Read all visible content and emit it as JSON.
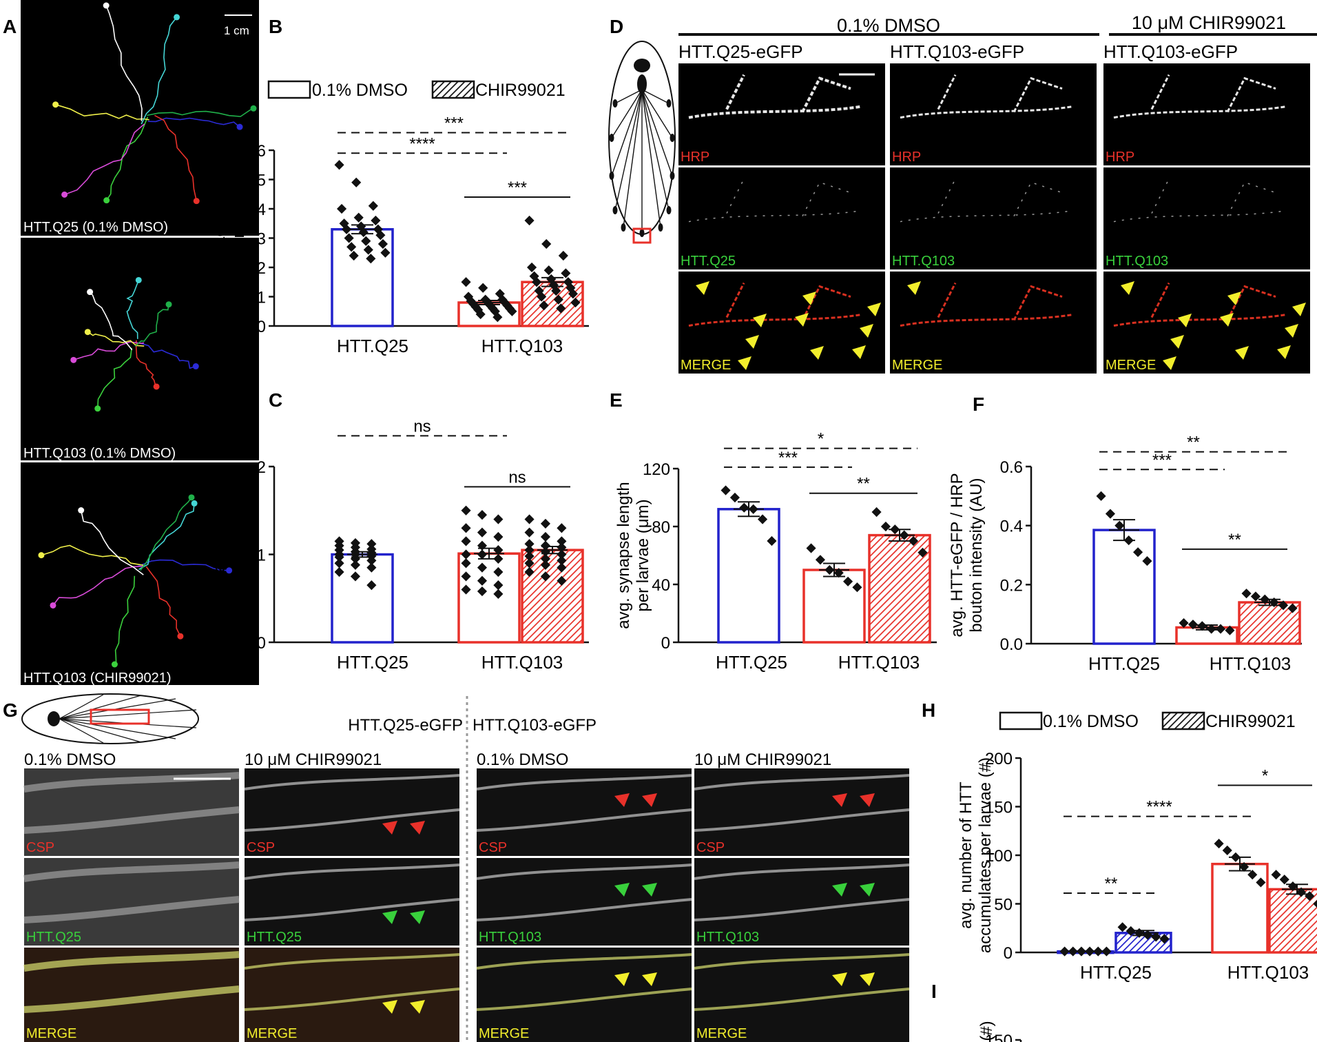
{
  "colors": {
    "blue": "#2222cc",
    "red": "#e8312a",
    "green": "#39d03c",
    "yellow": "#f2ee2c",
    "track_palette": [
      "#2b2bd6",
      "#e8312a",
      "#3bd13d",
      "#d84bd8",
      "#f0f04a",
      "#ffffff",
      "#45d6d6",
      "#20b04a"
    ]
  },
  "panel_letters": {
    "A": "A",
    "B": "B",
    "C": "C",
    "D": "D",
    "E": "E",
    "F": "F",
    "G": "G",
    "H": "H",
    "I": "I"
  },
  "panel_a": {
    "scale_label": "1 cm",
    "captions": [
      "HTT.Q25 (0.1% DMSO)",
      "HTT.Q103 (0.1% DMSO)",
      "HTT.Q103 (CHIR99021)"
    ]
  },
  "legend": {
    "dmso": "0.1% DMSO",
    "chir": "CHIR99021"
  },
  "panel_d": {
    "header_dmso": "0.1% DMSO",
    "header_chir": "10 μM CHIR99021",
    "col_titles": [
      "HTT.Q25-eGFP",
      "HTT.Q103-eGFP",
      "HTT.Q103-eGFP"
    ],
    "row_labels": [
      [
        "HRP",
        "HRP",
        "HRP"
      ],
      [
        "HTT.Q25",
        "HTT.Q103",
        "HTT.Q103"
      ],
      [
        "MERGE",
        "MERGE",
        "MERGE"
      ]
    ]
  },
  "panel_g": {
    "group_q25": "HTT.Q25-eGFP",
    "group_q103": "HTT.Q103-eGFP",
    "col_titles": [
      "0.1% DMSO",
      "10 μM CHIR99021",
      "0.1% DMSO",
      "10 μM CHIR99021"
    ],
    "row_labels": [
      [
        "CSP",
        "CSP",
        "CSP",
        "CSP"
      ],
      [
        "HTT.Q25",
        "HTT.Q25",
        "HTT.Q103",
        "HTT.Q103"
      ],
      [
        "MERGE",
        "MERGE",
        "MERGE",
        "MERGE"
      ]
    ]
  },
  "chart_data": [
    {
      "id": "B",
      "type": "bar",
      "ylabel": [
        "avg. larvae velocity",
        "(cm/min)"
      ],
      "ylim": [
        0,
        6
      ],
      "yticks": [
        "0",
        "1",
        "2",
        "3",
        "4",
        "5",
        "6"
      ],
      "groups": [
        "HTT.Q25",
        "HTT.Q103"
      ],
      "bars": [
        {
          "group": "HTT.Q25",
          "treatment": "0.1% DMSO",
          "mean": 3.3,
          "sem": 0.15,
          "points": [
            5.5,
            4.9,
            4.1,
            4.0,
            3.7,
            3.6,
            3.5,
            3.4,
            3.3,
            3.3,
            3.2,
            3.1,
            3.0,
            2.9,
            2.8,
            2.7,
            2.6,
            2.5,
            2.4,
            2.3
          ]
        },
        {
          "group": "HTT.Q103",
          "treatment": "0.1% DMSO",
          "mean": 0.8,
          "sem": 0.07,
          "points": [
            1.5,
            1.3,
            1.1,
            1.0,
            0.9,
            0.9,
            0.85,
            0.8,
            0.8,
            0.75,
            0.7,
            0.7,
            0.65,
            0.6,
            0.6,
            0.55,
            0.5,
            0.5,
            0.4,
            0.3
          ]
        },
        {
          "group": "HTT.Q103",
          "treatment": "CHIR99021",
          "mean": 1.5,
          "sem": 0.15,
          "points": [
            3.6,
            2.8,
            2.4,
            2.0,
            1.9,
            1.8,
            1.7,
            1.6,
            1.5,
            1.5,
            1.4,
            1.3,
            1.2,
            1.2,
            1.1,
            1.0,
            0.9,
            0.8,
            0.7,
            0.6
          ]
        }
      ],
      "significance": [
        {
          "from": 0,
          "to": 2,
          "label": "***",
          "dashed": true,
          "y": 6.6
        },
        {
          "from": 0,
          "to": 1,
          "label": "****",
          "dashed": true,
          "y": 5.9
        },
        {
          "from": 1,
          "to": 2,
          "label": "***",
          "dashed": false,
          "y": 4.4
        }
      ]
    },
    {
      "id": "C",
      "type": "bar",
      "ylabel": [
        "avg. larvae size",
        "normalized to Q25 (AU)"
      ],
      "ylim": [
        0,
        2
      ],
      "yticks": [
        "0",
        "1",
        "2"
      ],
      "groups": [
        "HTT.Q25",
        "HTT.Q103"
      ],
      "bars": [
        {
          "group": "HTT.Q25",
          "treatment": "0.1% DMSO",
          "mean": 1.0,
          "sem": 0.03,
          "points": [
            1.15,
            1.13,
            1.12,
            1.1,
            1.08,
            1.06,
            1.05,
            1.03,
            1.02,
            1.0,
            1.0,
            0.98,
            0.97,
            0.95,
            0.93,
            0.9,
            0.88,
            0.85,
            0.8,
            0.75,
            0.65
          ]
        },
        {
          "group": "HTT.Q103",
          "treatment": "0.1% DMSO",
          "mean": 1.01,
          "sem": 0.06,
          "points": [
            1.5,
            1.45,
            1.4,
            1.3,
            1.25,
            1.2,
            1.15,
            1.1,
            1.05,
            1.0,
            1.0,
            0.95,
            0.9,
            0.85,
            0.8,
            0.75,
            0.7,
            0.65,
            0.6,
            0.58,
            0.55
          ]
        },
        {
          "group": "HTT.Q103",
          "treatment": "CHIR99021",
          "mean": 1.05,
          "sem": 0.04,
          "points": [
            1.4,
            1.35,
            1.3,
            1.25,
            1.2,
            1.15,
            1.12,
            1.1,
            1.08,
            1.05,
            1.03,
            1.0,
            0.98,
            0.95,
            0.93,
            0.9,
            0.88,
            0.85,
            0.8,
            0.75,
            0.7
          ]
        }
      ],
      "significance": [
        {
          "from": 0,
          "to": 1,
          "label": "ns",
          "dashed": true,
          "y": 2.35
        },
        {
          "from": 1,
          "to": 2,
          "label": "ns",
          "dashed": false,
          "y": 1.77
        }
      ]
    },
    {
      "id": "E",
      "type": "bar",
      "ylabel": [
        "avg. synapse length",
        "per larvae (μm)"
      ],
      "ylim": [
        0,
        120
      ],
      "yticks": [
        "0",
        "40",
        "80",
        "120"
      ],
      "groups": [
        "HTT.Q25",
        "HTT.Q103"
      ],
      "bars": [
        {
          "group": "HTT.Q25",
          "treatment": "0.1% DMSO",
          "mean": 92,
          "sem": 5,
          "points": [
            105,
            100,
            93,
            92,
            85,
            70
          ]
        },
        {
          "group": "HTT.Q103",
          "treatment": "0.1% DMSO",
          "mean": 50,
          "sem": 4.5,
          "points": [
            65,
            57,
            50,
            48,
            42,
            38
          ]
        },
        {
          "group": "HTT.Q103",
          "treatment": "CHIR99021",
          "mean": 74,
          "sem": 4,
          "points": [
            90,
            80,
            78,
            74,
            70,
            62
          ]
        }
      ],
      "significance": [
        {
          "from": 0,
          "to": 2,
          "label": "*",
          "dashed": true,
          "y": 134
        },
        {
          "from": 0,
          "to": 1,
          "label": "***",
          "dashed": true,
          "y": 121
        },
        {
          "from": 1,
          "to": 2,
          "label": "**",
          "dashed": false,
          "y": 103
        }
      ]
    },
    {
      "id": "F",
      "type": "bar",
      "ylabel": [
        "avg. HTT-eGFP / HRP",
        "bouton intensity (AU)"
      ],
      "ylim": [
        0,
        0.6
      ],
      "yticks": [
        "0.0",
        "0.2",
        "0.4",
        "0.6"
      ],
      "groups": [
        "HTT.Q25",
        "HTT.Q103"
      ],
      "bars": [
        {
          "group": "HTT.Q25",
          "treatment": "0.1% DMSO",
          "mean": 0.385,
          "sem": 0.035,
          "points": [
            0.5,
            0.44,
            0.4,
            0.35,
            0.31,
            0.28
          ]
        },
        {
          "group": "HTT.Q103",
          "treatment": "0.1% DMSO",
          "mean": 0.055,
          "sem": 0.008,
          "points": [
            0.07,
            0.065,
            0.06,
            0.05,
            0.05,
            0.045
          ]
        },
        {
          "group": "HTT.Q103",
          "treatment": "CHIR99021",
          "mean": 0.14,
          "sem": 0.01,
          "points": [
            0.17,
            0.16,
            0.15,
            0.14,
            0.13,
            0.12
          ]
        }
      ],
      "significance": [
        {
          "from": 0,
          "to": 2,
          "label": "**",
          "dashed": true,
          "y": 0.65
        },
        {
          "from": 0,
          "to": 1,
          "label": "***",
          "dashed": true,
          "y": 0.59
        },
        {
          "from": 1,
          "to": 2,
          "label": "**",
          "dashed": false,
          "y": 0.32
        }
      ]
    },
    {
      "id": "H",
      "type": "bar",
      "ylabel": [
        "avg. number of HTT",
        "accumulates per larvae (#)"
      ],
      "ylim": [
        0,
        200
      ],
      "yticks": [
        "0",
        "50",
        "100",
        "150",
        "200"
      ],
      "groups": [
        "HTT.Q25",
        "HTT.Q103"
      ],
      "bars": [
        {
          "group": "HTT.Q25",
          "treatment": "0.1% DMSO",
          "mean": 1,
          "sem": 0.3,
          "points": [
            1,
            1,
            1,
            1,
            1,
            1
          ]
        },
        {
          "group": "HTT.Q25",
          "treatment": "CHIR99021",
          "mean": 20,
          "sem": 2.5,
          "points": [
            26,
            22,
            20,
            18,
            16,
            14
          ]
        },
        {
          "group": "HTT.Q103",
          "treatment": "0.1% DMSO",
          "mean": 91,
          "sem": 7,
          "points": [
            112,
            105,
            98,
            88,
            80,
            72
          ]
        },
        {
          "group": "HTT.Q103",
          "treatment": "CHIR99021",
          "mean": 65,
          "sem": 5,
          "points": [
            80,
            75,
            68,
            62,
            58,
            50
          ]
        }
      ],
      "significance": [
        {
          "from": 0,
          "to": 2,
          "label": "****",
          "dashed": true,
          "y": 140
        },
        {
          "from": 0,
          "to": 1,
          "label": "**",
          "dashed": true,
          "y": 61
        },
        {
          "from": 2,
          "to": 3,
          "label": "*",
          "dashed": false,
          "y": 172
        }
      ]
    },
    {
      "id": "I",
      "type": "bar",
      "ylabel": [
        "(#)"
      ],
      "ylim": [
        0,
        150
      ],
      "yticks": [
        "150"
      ],
      "groups": [],
      "bars": [],
      "significance": []
    }
  ]
}
